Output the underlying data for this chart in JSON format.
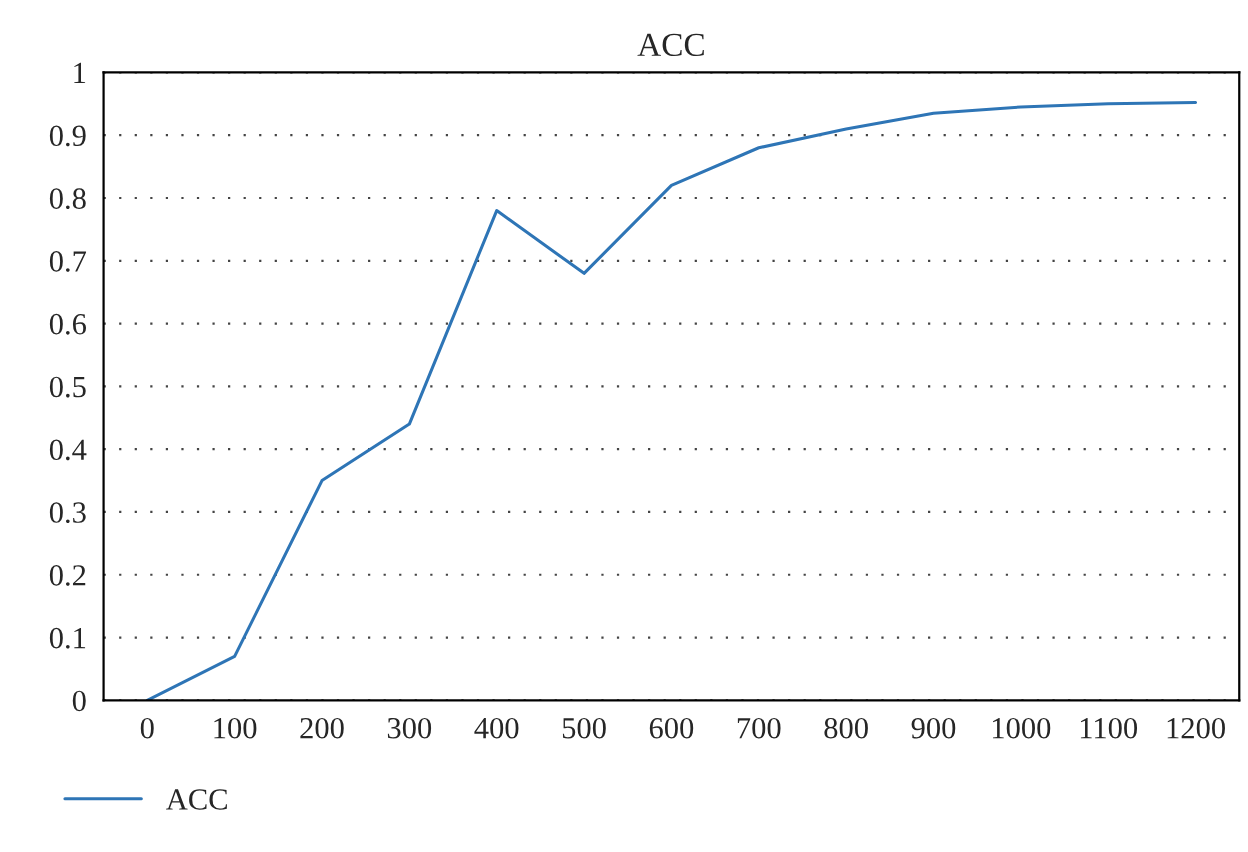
{
  "chart_data": {
    "type": "line",
    "title": "ACC",
    "categories": [
      "0",
      "100",
      "200",
      "300",
      "400",
      "500",
      "600",
      "700",
      "800",
      "900",
      "1000",
      "1100",
      "1200"
    ],
    "series": [
      {
        "name": "ACC",
        "color": "#2e75b6",
        "values": [
          0.0,
          0.07,
          0.35,
          0.44,
          0.78,
          0.68,
          0.82,
          0.88,
          0.91,
          0.935,
          0.945,
          0.95,
          0.952
        ]
      }
    ],
    "ylim": [
      0,
      1
    ],
    "yticks": [
      0,
      0.1,
      0.2,
      0.3,
      0.4,
      0.5,
      0.6,
      0.7,
      0.8,
      0.9,
      1
    ],
    "grid": "y",
    "legend": "bottom left",
    "marker": "none",
    "line_style": "solid"
  }
}
